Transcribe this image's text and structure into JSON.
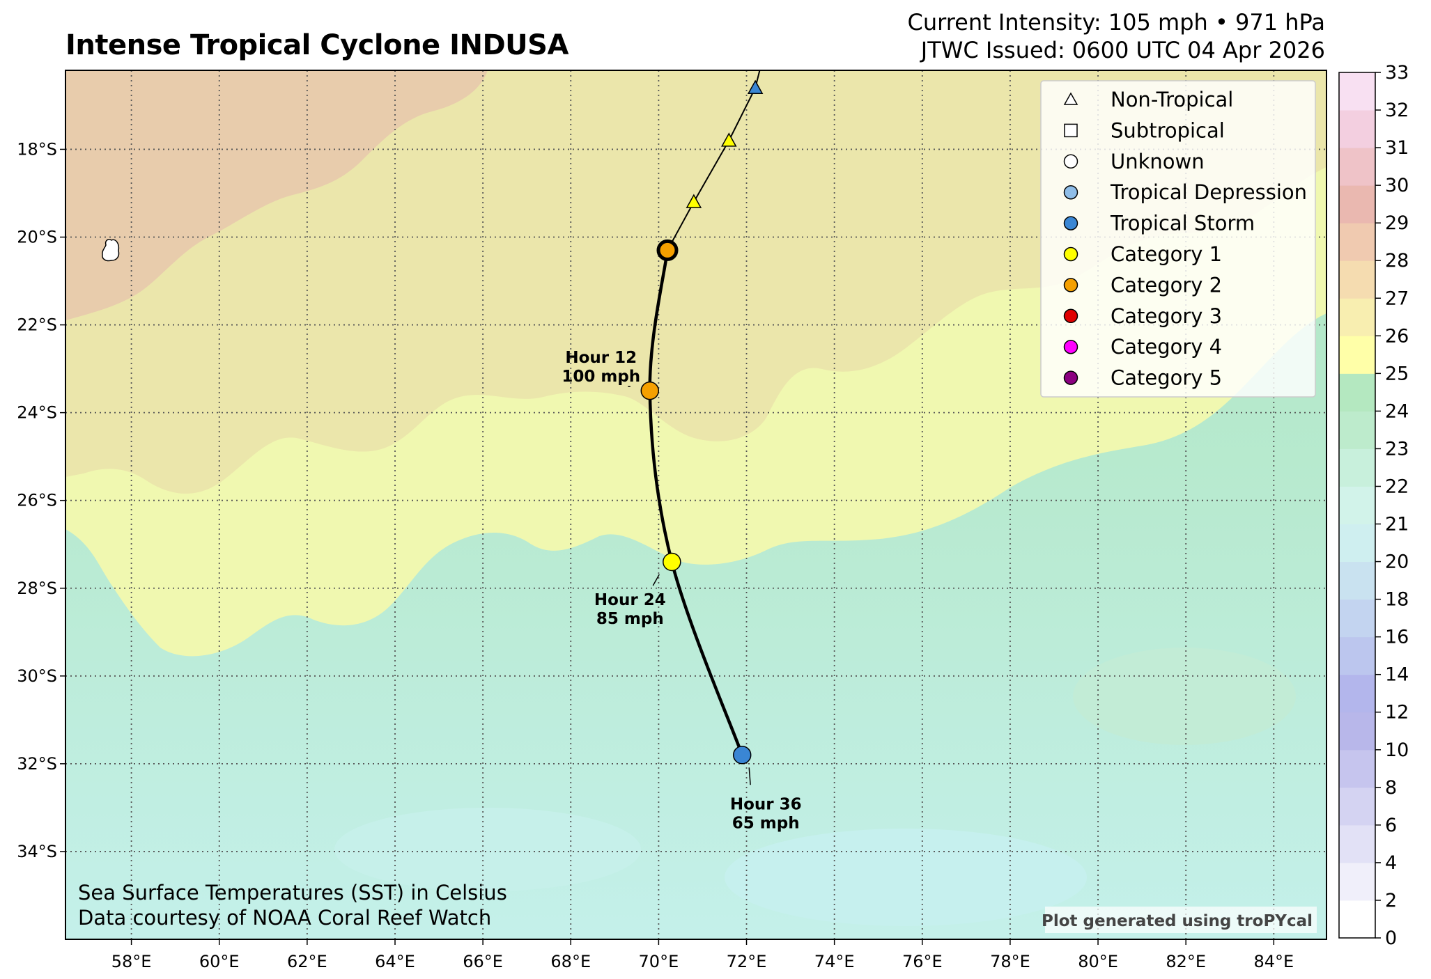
{
  "title": "Intense Tropical Cyclone INDUSA",
  "current_intensity": "Current Intensity: 105 mph • 971 hPa",
  "issued": "JTWC Issued: 0600 UTC 04 Apr 2026",
  "footer": {
    "line1": "Sea Surface Temperatures (SST) in Celsius",
    "line2": "Data courtesy of NOAA Coral Reef Watch",
    "credit": "Plot generated using troPYcal"
  },
  "map": {
    "lon_range": [
      56.5,
      85.2
    ],
    "lat_range": [
      -36.0,
      -16.2
    ],
    "lon_ticks": [
      "58°E",
      "60°E",
      "62°E",
      "64°E",
      "66°E",
      "68°E",
      "70°E",
      "72°E",
      "74°E",
      "76°E",
      "78°E",
      "80°E",
      "82°E",
      "84°E"
    ],
    "lon_tick_values": [
      58,
      60,
      62,
      64,
      66,
      68,
      70,
      72,
      74,
      76,
      78,
      80,
      82,
      84
    ],
    "lat_ticks": [
      "18°S",
      "20°S",
      "22°S",
      "24°S",
      "26°S",
      "28°S",
      "30°S",
      "32°S",
      "34°S"
    ],
    "lat_tick_values": [
      -18,
      -20,
      -22,
      -24,
      -26,
      -28,
      -30,
      -32,
      -34
    ],
    "grid": "dotted"
  },
  "legend": {
    "placement": "top-right",
    "items": [
      {
        "label": "Non-Tropical",
        "symbol": "triangle",
        "color": "#ffffff"
      },
      {
        "label": "Subtropical",
        "symbol": "square",
        "color": "#ffffff"
      },
      {
        "label": "Unknown",
        "symbol": "circle",
        "color": "#ffffff"
      },
      {
        "label": "Tropical Depression",
        "symbol": "circle",
        "color": "#8fbde8"
      },
      {
        "label": "Tropical Storm",
        "symbol": "circle",
        "color": "#3a86d4"
      },
      {
        "label": "Category 1",
        "symbol": "circle",
        "color": "#ffff00"
      },
      {
        "label": "Category 2",
        "symbol": "circle",
        "color": "#f5a000"
      },
      {
        "label": "Category 3",
        "symbol": "circle",
        "color": "#e00000"
      },
      {
        "label": "Category 4",
        "symbol": "circle",
        "color": "#ff00ff"
      },
      {
        "label": "Category 5",
        "symbol": "circle",
        "color": "#8b0080"
      }
    ]
  },
  "colorbar": {
    "ticks": [
      "0",
      "2",
      "4",
      "6",
      "8",
      "10",
      "12",
      "14",
      "16",
      "18",
      "20",
      "21",
      "22",
      "23",
      "24",
      "25",
      "26",
      "27",
      "28",
      "29",
      "30",
      "31",
      "32",
      "33"
    ],
    "colors": [
      "#ffffff",
      "#f0effa",
      "#e2e1f6",
      "#d4d3f2",
      "#c6c5ee",
      "#b8b7ea",
      "#b3b6ec",
      "#bcc6ee",
      "#c3d4f0",
      "#c9e2f0",
      "#cfeff0",
      "#d2f3ea",
      "#c8f0dc",
      "#bdebcc",
      "#b4e8c0",
      "#ffffa8",
      "#f8eeb0",
      "#f5dcb0",
      "#f0cab0",
      "#eab8b0",
      "#efc3c8",
      "#f3cfe0",
      "#f8e0f2"
    ]
  },
  "track": {
    "past": [
      {
        "lon": 72.2,
        "lat": -16.6,
        "symbol": "triangle",
        "color": "#3a86d4"
      },
      {
        "lon": 71.6,
        "lat": -17.8,
        "symbol": "triangle",
        "color": "#ffff00"
      },
      {
        "lon": 70.8,
        "lat": -19.2,
        "symbol": "triangle",
        "color": "#ffff00"
      }
    ],
    "current": {
      "lon": 70.2,
      "lat": -20.3,
      "color": "#f5a000"
    },
    "forecast": [
      {
        "lon": 69.8,
        "lat": -23.5,
        "color": "#f5a000",
        "hour": "Hour 12",
        "wind": "100 mph"
      },
      {
        "lon": 70.3,
        "lat": -27.4,
        "color": "#ffff00",
        "hour": "Hour 24",
        "wind": "85 mph"
      },
      {
        "lon": 71.9,
        "lat": -31.8,
        "color": "#3a86d4",
        "hour": "Hour 36",
        "wind": "65 mph"
      }
    ]
  }
}
